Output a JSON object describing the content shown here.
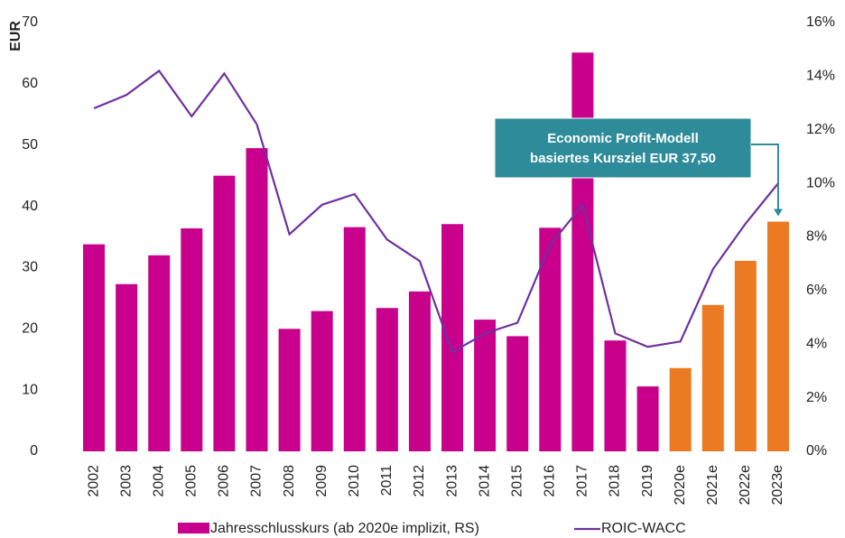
{
  "chart_data": {
    "type": "bar_line",
    "y_label": "EUR",
    "categories": [
      "2002",
      "2003",
      "2004",
      "2005",
      "2006",
      "2007",
      "2008",
      "2009",
      "2010",
      "2011",
      "2012",
      "2013",
      "2014",
      "2015",
      "2016",
      "2017",
      "2018",
      "2019",
      "2020e",
      "2021e",
      "2022e",
      "2023e"
    ],
    "series": [
      {
        "name": "Jahresschlusskurs (ab 2020e implizit, RS)",
        "type": "bar",
        "color": "#c8008c",
        "colors": [
          "#c8008c",
          "#c8008c",
          "#c8008c",
          "#c8008c",
          "#c8008c",
          "#c8008c",
          "#c8008c",
          "#c8008c",
          "#c8008c",
          "#c8008c",
          "#c8008c",
          "#c8008c",
          "#c8008c",
          "#c8008c",
          "#c8008c",
          "#c8008c",
          "#c8008c",
          "#c8008c",
          "#ec7a23",
          "#ec7a23",
          "#ec7a23",
          "#ec7a23"
        ],
        "values": [
          33.8,
          27.3,
          32,
          36.4,
          45,
          49.5,
          20,
          22.9,
          36.6,
          23.4,
          26.1,
          37.1,
          21.5,
          18.8,
          36.5,
          65.1,
          18.1,
          10.6,
          13.6,
          23.9,
          31.1,
          37.5
        ]
      },
      {
        "name": "ROIC-WACC",
        "type": "line",
        "axis": "y2",
        "color": "#7030a0",
        "values": [
          12.8,
          13.3,
          14.2,
          12.5,
          14.1,
          12.2,
          8.1,
          9.2,
          9.6,
          7.9,
          7.1,
          3.7,
          4.4,
          4.8,
          7.7,
          9.2,
          4.4,
          3.9,
          4.1,
          6.8,
          8.5,
          10.0
        ]
      }
    ],
    "ylim": [
      0,
      70
    ],
    "yticks": [
      0,
      10,
      20,
      30,
      40,
      50,
      60,
      70
    ],
    "y2lim": [
      0,
      16
    ],
    "y2ticks": [
      {
        "value": 0,
        "label": "0%"
      },
      {
        "value": 2,
        "label": "2%"
      },
      {
        "value": 4,
        "label": "4%"
      },
      {
        "value": 6,
        "label": "6%"
      },
      {
        "value": 8,
        "label": "8%"
      },
      {
        "value": 10,
        "label": "10%"
      },
      {
        "value": 12,
        "label": "12%"
      },
      {
        "value": 14,
        "label": "14%"
      },
      {
        "value": 16,
        "label": "16%"
      }
    ],
    "annotation": {
      "lines": [
        "Economic Profit-Modell",
        "basiertes Kursziel EUR 37,50"
      ],
      "color": "#2e8b9a",
      "target": 21
    },
    "grid": false
  }
}
